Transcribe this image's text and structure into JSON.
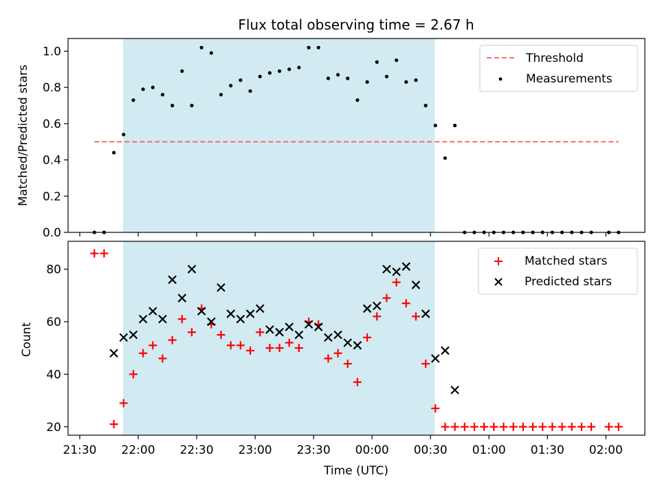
{
  "chart_data": {
    "title": "Flux total observing time = 2.67 h",
    "xlabel": "Time (UTC)",
    "x_unit": "minutes after 21:30 UTC (21:30 = 0)",
    "xlim": [
      -6,
      290
    ],
    "xticks": [
      {
        "value": 0,
        "label": "21:30"
      },
      {
        "value": 30,
        "label": "22:00"
      },
      {
        "value": 60,
        "label": "22:30"
      },
      {
        "value": 90,
        "label": "23:00"
      },
      {
        "value": 120,
        "label": "23:30"
      },
      {
        "value": 150,
        "label": "00:00"
      },
      {
        "value": 180,
        "label": "00:30"
      },
      {
        "value": 210,
        "label": "01:00"
      },
      {
        "value": 240,
        "label": "01:30"
      },
      {
        "value": 270,
        "label": "02:00"
      }
    ],
    "observing_window": {
      "start": 22.2,
      "end": 182.2,
      "color": "#add8e6"
    },
    "top": {
      "type": "scatter",
      "ylabel": "Matched/Predicted stars",
      "ylim": [
        0,
        1.07
      ],
      "yticks": [
        0.0,
        0.2,
        0.4,
        0.6,
        0.8,
        1.0
      ],
      "ytick_labels": [
        "0.0",
        "0.2",
        "0.4",
        "0.6",
        "0.8",
        "1.0"
      ],
      "threshold": {
        "name": "Threshold",
        "value": 0.5,
        "x_start": 7.5,
        "x_end": 276.5,
        "color": "#ff6666"
      },
      "legend": {
        "position": "upper right",
        "entries": [
          "Threshold",
          "Measurements"
        ]
      },
      "series": [
        {
          "name": "Measurements",
          "color": "#000000",
          "x": [
            7.5,
            12.5,
            17.5,
            22.5,
            27.5,
            32.5,
            37.5,
            42.5,
            47.5,
            52.5,
            57.5,
            62.5,
            67.5,
            72.5,
            77.5,
            82.5,
            87.5,
            92.5,
            97.5,
            102.5,
            107.5,
            112.5,
            117.5,
            122.5,
            127.5,
            132.5,
            137.5,
            142.5,
            147.5,
            152.5,
            157.5,
            162.5,
            167.5,
            172.5,
            177.5,
            182.5,
            187.5,
            192.5,
            197.5,
            202.5,
            207.5,
            212.5,
            217.5,
            222.5,
            227.5,
            232.5,
            237.5,
            242.5,
            247.5,
            252.5,
            257.5,
            262.5,
            271.5,
            276.5
          ],
          "y": [
            0.0,
            0.0,
            0.44,
            0.54,
            0.73,
            0.79,
            0.8,
            0.76,
            0.7,
            0.89,
            0.7,
            1.02,
            0.99,
            0.76,
            0.81,
            0.84,
            0.78,
            0.86,
            0.88,
            0.89,
            0.9,
            0.91,
            1.02,
            1.02,
            0.85,
            0.87,
            0.85,
            0.73,
            0.83,
            0.94,
            0.86,
            0.95,
            0.83,
            0.84,
            0.7,
            0.59,
            0.41,
            0.59,
            0.0,
            0.0,
            0.0,
            0.0,
            0.0,
            0.0,
            0.0,
            0.0,
            0.0,
            0.0,
            0.0,
            0.0,
            0.0,
            0.0,
            0.0,
            0.0
          ]
        }
      ]
    },
    "bottom": {
      "type": "scatter",
      "ylabel": "Count",
      "ylim": [
        16.8,
        90.6
      ],
      "yticks": [
        20,
        40,
        60,
        80
      ],
      "ytick_labels": [
        "20",
        "40",
        "60",
        "80"
      ],
      "legend": {
        "position": "upper right",
        "entries": [
          "Matched stars",
          "Predicted stars"
        ]
      },
      "series": [
        {
          "name": "Matched stars",
          "marker": "+",
          "color": "#ff0000",
          "x": [
            7.5,
            12.5,
            17.5,
            22.5,
            27.5,
            32.5,
            37.5,
            42.5,
            47.5,
            52.5,
            57.5,
            62.5,
            67.5,
            72.5,
            77.5,
            82.5,
            87.5,
            92.5,
            97.5,
            102.5,
            107.5,
            112.5,
            117.5,
            122.5,
            127.5,
            132.5,
            137.5,
            142.5,
            147.5,
            152.5,
            157.5,
            162.5,
            167.5,
            172.5,
            177.5,
            182.5,
            187.5,
            192.5,
            197.5,
            202.5,
            207.5,
            212.5,
            217.5,
            222.5,
            227.5,
            232.5,
            237.5,
            242.5,
            247.5,
            252.5,
            257.5,
            262.5,
            271.5,
            276.5
          ],
          "y": [
            86,
            86,
            21,
            29,
            40,
            48,
            51,
            46,
            53,
            61,
            56,
            65,
            59,
            55,
            51,
            51,
            49,
            56,
            50,
            50,
            52,
            50,
            60,
            59,
            46,
            48,
            44,
            37,
            54,
            62,
            69,
            75,
            67,
            62,
            44,
            27,
            20,
            20,
            20,
            20,
            20,
            20,
            20,
            20,
            20,
            20,
            20,
            20,
            20,
            20,
            20,
            20,
            20,
            20
          ]
        },
        {
          "name": "Predicted stars",
          "marker": "x",
          "color": "#000000",
          "x": [
            17.5,
            22.5,
            27.5,
            32.5,
            37.5,
            42.5,
            47.5,
            52.5,
            57.5,
            62.5,
            67.5,
            72.5,
            77.5,
            82.5,
            87.5,
            92.5,
            97.5,
            102.5,
            107.5,
            112.5,
            117.5,
            122.5,
            127.5,
            132.5,
            137.5,
            142.5,
            147.5,
            152.5,
            157.5,
            162.5,
            167.5,
            172.5,
            177.5,
            182.5,
            187.5,
            192.5
          ],
          "y": [
            48,
            54,
            55,
            61,
            64,
            61,
            76,
            69,
            80,
            64,
            60,
            73,
            63,
            61,
            63,
            65,
            57,
            56,
            58,
            55,
            59,
            58,
            54,
            55,
            52,
            51,
            65,
            66,
            80,
            79,
            81,
            74,
            63,
            46,
            49,
            34
          ]
        }
      ]
    }
  }
}
